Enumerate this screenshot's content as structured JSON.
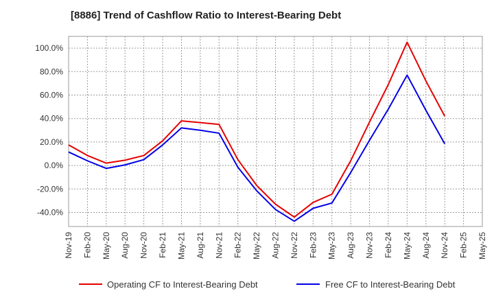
{
  "chart_data": {
    "type": "line",
    "title": "[8886]  Trend of Cashflow Ratio to Interest-Bearing Debt",
    "xlabel": "",
    "ylabel": "",
    "categories": [
      "Nov-19",
      "Feb-20",
      "May-20",
      "Aug-20",
      "Nov-20",
      "Feb-21",
      "May-21",
      "Aug-21",
      "Nov-21",
      "Feb-22",
      "May-22",
      "Aug-22",
      "Nov-22",
      "Feb-23",
      "May-23",
      "Aug-23",
      "Nov-23",
      "Feb-24",
      "May-24",
      "Aug-24",
      "Nov-24",
      "Feb-25",
      "May-25"
    ],
    "ylim": [
      -52,
      110
    ],
    "yticks": [
      -40,
      -20,
      0,
      20,
      40,
      60,
      80,
      100
    ],
    "ytick_labels": [
      "-40.0%",
      "-20.0%",
      "0.0%",
      "20.0%",
      "40.0%",
      "60.0%",
      "80.0%",
      "100.0%"
    ],
    "grid": true,
    "legend_position": "bottom",
    "series": [
      {
        "name": "Operating CF to Interest-Bearing Debt",
        "color": "#e60000",
        "values": [
          17.5,
          8.5,
          2.0,
          4.5,
          8.5,
          21.0,
          38.0,
          36.5,
          35.0,
          5.0,
          -17.0,
          -33.0,
          -44.0,
          -31.5,
          -24.5,
          4.0,
          37.0,
          69.0,
          105.0,
          72.0,
          42.0,
          null,
          null
        ]
      },
      {
        "name": "Free CF to Interest-Bearing Debt",
        "color": "#0000e6",
        "values": [
          11.5,
          4.0,
          -2.5,
          0.5,
          5.0,
          17.5,
          32.0,
          30.0,
          27.5,
          -1.5,
          -21.5,
          -37.5,
          -47.5,
          -36.5,
          -32.0,
          -6.0,
          21.5,
          48.0,
          77.0,
          47.0,
          18.5,
          null,
          null
        ]
      }
    ]
  }
}
